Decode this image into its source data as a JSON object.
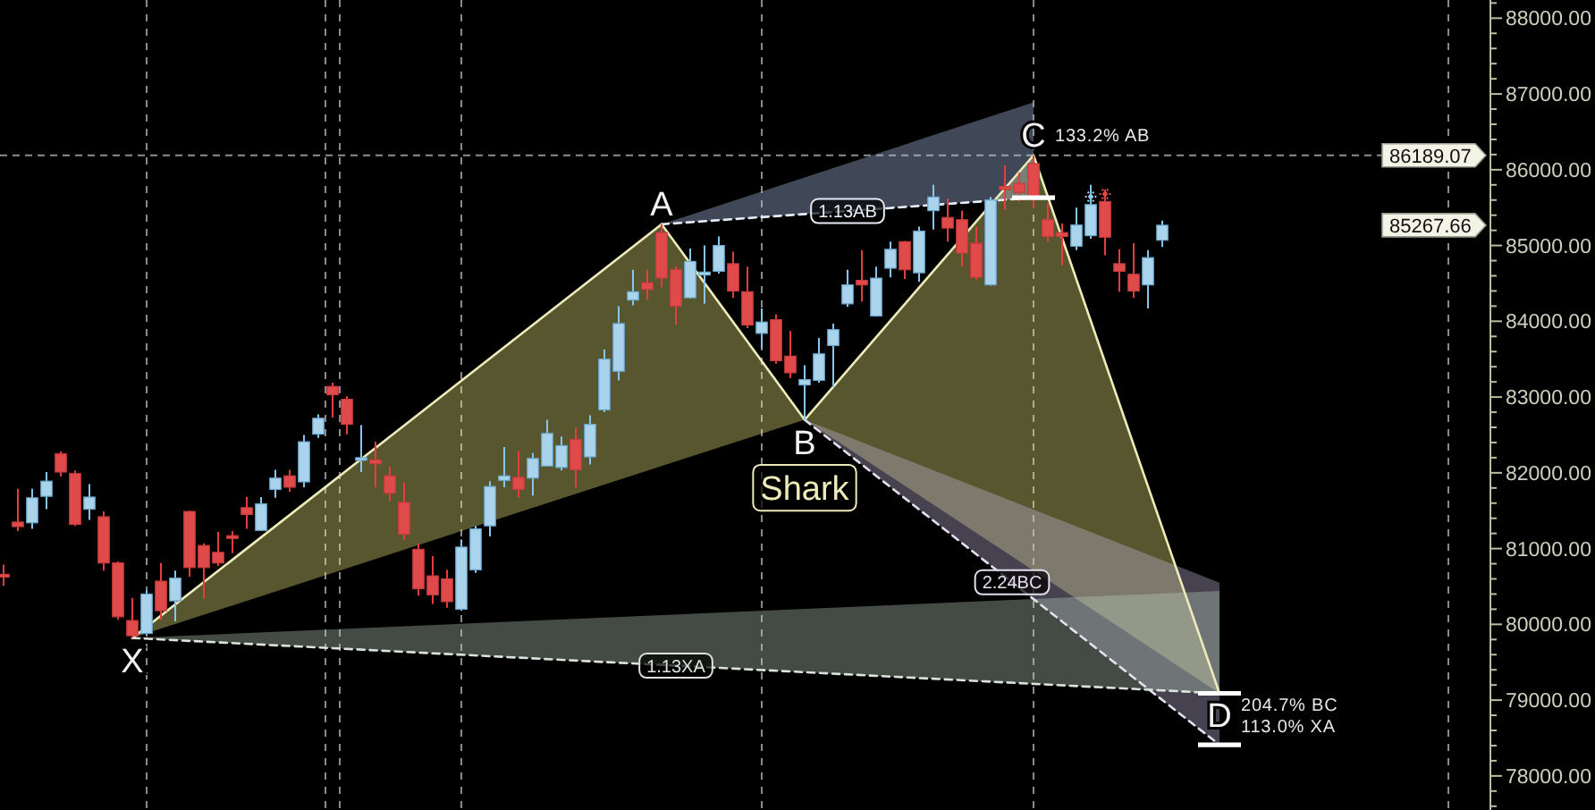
{
  "chart_data": {
    "type": "candlestick",
    "categories": [
      null,
      null,
      null,
      null,
      null,
      null,
      null,
      null,
      null,
      null,
      null,
      null,
      null,
      null,
      null,
      null,
      null,
      null,
      null,
      null,
      null,
      null,
      null,
      null,
      null,
      null,
      null,
      null,
      null,
      null,
      null,
      null,
      null,
      null,
      null,
      null,
      null,
      null,
      null,
      null,
      null,
      null,
      null,
      null,
      null,
      null,
      null,
      null,
      null,
      null,
      null,
      null,
      null,
      null,
      null,
      null,
      null,
      null,
      null,
      null,
      null,
      null,
      null,
      null,
      null,
      null,
      null,
      null,
      null,
      null,
      null,
      null,
      null,
      null,
      null,
      null,
      null,
      null,
      null,
      null,
      null,
      null,
      null,
      null,
      null,
      null,
      null,
      null,
      null,
      null,
      null,
      null,
      null,
      null,
      null,
      null,
      null,
      null,
      null,
      null,
      null,
      null,
      null,
      null
    ],
    "ohlc": [
      [
        80660,
        80790,
        80510,
        80640
      ],
      [
        81350,
        81790,
        81230,
        81290
      ],
      [
        81340,
        81790,
        81260,
        81670
      ],
      [
        81690,
        82010,
        81520,
        81890
      ],
      [
        82250,
        82280,
        81950,
        82010
      ],
      [
        81990,
        82030,
        81300,
        81320
      ],
      [
        81520,
        81850,
        81380,
        81680
      ],
      [
        81420,
        81490,
        80710,
        80810
      ],
      [
        80810,
        80830,
        80060,
        80100
      ],
      [
        80050,
        80350,
        79820,
        79850
      ],
      [
        79880,
        80450,
        79860,
        80400
      ],
      [
        80570,
        80810,
        80060,
        80180
      ],
      [
        80310,
        80710,
        80040,
        80610
      ],
      [
        81490,
        81500,
        80630,
        80750
      ],
      [
        81040,
        81070,
        80340,
        80750
      ],
      [
        80950,
        81220,
        80770,
        80810
      ],
      [
        81170,
        81230,
        80940,
        81140
      ],
      [
        81540,
        81680,
        81260,
        81450
      ],
      [
        81240,
        81680,
        81230,
        81590
      ],
      [
        81780,
        82040,
        81670,
        81930
      ],
      [
        81960,
        82040,
        81750,
        81810
      ],
      [
        81880,
        82500,
        81810,
        82410
      ],
      [
        82510,
        82770,
        82460,
        82720
      ],
      [
        83140,
        83190,
        82730,
        83030
      ],
      [
        82970,
        83010,
        82510,
        82640
      ],
      [
        82170,
        82630,
        82010,
        82200
      ],
      [
        82170,
        82410,
        81810,
        82120
      ],
      [
        81960,
        82080,
        81630,
        81730
      ],
      [
        81610,
        81870,
        81120,
        81190
      ],
      [
        80990,
        81070,
        80380,
        80470
      ],
      [
        80640,
        80900,
        80270,
        80390
      ],
      [
        80600,
        80720,
        80220,
        80300
      ],
      [
        80200,
        81120,
        80180,
        81020
      ],
      [
        80720,
        81300,
        80680,
        81260
      ],
      [
        81300,
        81890,
        81160,
        81820
      ],
      [
        81900,
        82340,
        81810,
        81960
      ],
      [
        81940,
        82290,
        81670,
        81780
      ],
      [
        81930,
        82260,
        81700,
        82190
      ],
      [
        82090,
        82700,
        82080,
        82520
      ],
      [
        82070,
        82480,
        82030,
        82360
      ],
      [
        82440,
        82600,
        81810,
        82040
      ],
      [
        82210,
        82760,
        82110,
        82640
      ],
      [
        82830,
        83630,
        82800,
        83500
      ],
      [
        83340,
        84200,
        83220,
        83970
      ],
      [
        84280,
        84680,
        84210,
        84390
      ],
      [
        84510,
        84680,
        84280,
        84420
      ],
      [
        85170,
        85280,
        84450,
        84570
      ],
      [
        84680,
        84730,
        83950,
        84200
      ],
      [
        84310,
        84960,
        84300,
        84790
      ],
      [
        84610,
        85000,
        84230,
        84650
      ],
      [
        84660,
        85120,
        84630,
        85000
      ],
      [
        84760,
        84920,
        84310,
        84400
      ],
      [
        84390,
        84720,
        83910,
        83950
      ],
      [
        83840,
        84170,
        83640,
        83990
      ],
      [
        84020,
        84090,
        83440,
        83480
      ],
      [
        83540,
        83870,
        83250,
        83320
      ],
      [
        83160,
        83420,
        82700,
        83230
      ],
      [
        83220,
        83780,
        83190,
        83570
      ],
      [
        83680,
        83970,
        83130,
        83890
      ],
      [
        84230,
        84680,
        84190,
        84480
      ],
      [
        84540,
        84940,
        84260,
        84480
      ],
      [
        84070,
        84720,
        84060,
        84570
      ],
      [
        84700,
        85050,
        84580,
        84950
      ],
      [
        85050,
        85060,
        84560,
        84680
      ],
      [
        84640,
        85250,
        84520,
        85190
      ],
      [
        85460,
        85800,
        85210,
        85640
      ],
      [
        85370,
        85620,
        85050,
        85230
      ],
      [
        85340,
        85460,
        84720,
        84900
      ],
      [
        85030,
        85250,
        84540,
        84580
      ],
      [
        84480,
        85640,
        84470,
        85600
      ],
      [
        85780,
        86060,
        85470,
        85740
      ],
      [
        85820,
        85960,
        85580,
        85700
      ],
      [
        86080,
        86190,
        85490,
        85640
      ],
      [
        85340,
        85560,
        85050,
        85120
      ],
      [
        85170,
        85290,
        84740,
        85120
      ],
      [
        84990,
        85500,
        84940,
        85270
      ],
      [
        85130,
        85800,
        85090,
        85540
      ],
      [
        85580,
        85740,
        84870,
        85110
      ],
      [
        84760,
        84950,
        84390,
        84660
      ],
      [
        84620,
        85030,
        84310,
        84400
      ],
      [
        84480,
        84940,
        84170,
        84840
      ],
      [
        85070,
        85330,
        84980,
        85267.66
      ],
      null,
      null,
      null,
      null,
      null,
      null,
      null,
      null,
      null,
      null,
      null,
      null,
      null,
      null,
      null,
      null,
      null,
      null,
      null,
      null,
      null,
      null
    ],
    "value_labels": [
      null,
      null,
      null,
      null,
      null,
      null,
      null,
      null,
      null,
      null,
      null,
      null,
      null,
      null,
      null,
      null,
      null,
      null,
      null,
      null,
      null,
      null,
      null,
      null,
      null,
      null,
      null,
      null,
      null,
      null,
      null,
      null,
      null,
      null,
      null,
      null,
      null,
      null,
      null,
      null,
      null,
      null,
      null,
      null,
      null,
      null,
      null,
      null,
      null,
      null,
      null,
      null,
      null,
      null,
      null,
      null,
      null,
      null,
      null,
      null,
      null,
      null,
      null,
      null,
      null,
      null,
      null,
      null,
      null,
      null,
      null,
      null,
      null,
      null,
      null,
      null,
      null,
      null,
      null,
      null,
      null,
      "85267.66",
      null,
      null,
      null,
      null,
      null,
      null,
      null,
      null,
      null,
      null,
      null,
      null,
      null,
      null,
      null,
      null,
      null,
      null,
      null,
      null,
      null,
      null
    ],
    "ylim": [
      77550,
      88240
    ],
    "yticks": [
      {
        "value": 77600,
        "label": null
      },
      {
        "value": 77800,
        "label": null
      },
      {
        "value": 78000,
        "label": "78000.00"
      },
      {
        "value": 78200,
        "label": null
      },
      {
        "value": 78400,
        "label": null
      },
      {
        "value": 78600,
        "label": null
      },
      {
        "value": 78800,
        "label": null
      },
      {
        "value": 79000,
        "label": "79000.00"
      },
      {
        "value": 79200,
        "label": null
      },
      {
        "value": 79400,
        "label": null
      },
      {
        "value": 79600,
        "label": null
      },
      {
        "value": 79800,
        "label": null
      },
      {
        "value": 80000,
        "label": "80000.00"
      },
      {
        "value": 80200,
        "label": null
      },
      {
        "value": 80400,
        "label": null
      },
      {
        "value": 80600,
        "label": null
      },
      {
        "value": 80800,
        "label": null
      },
      {
        "value": 81000,
        "label": "81000.00"
      },
      {
        "value": 81200,
        "label": null
      },
      {
        "value": 81400,
        "label": null
      },
      {
        "value": 81600,
        "label": null
      },
      {
        "value": 81800,
        "label": null
      },
      {
        "value": 82000,
        "label": "82000.00"
      },
      {
        "value": 82200,
        "label": null
      },
      {
        "value": 82400,
        "label": null
      },
      {
        "value": 82600,
        "label": null
      },
      {
        "value": 82800,
        "label": null
      },
      {
        "value": 83000,
        "label": "83000.00"
      },
      {
        "value": 83200,
        "label": null
      },
      {
        "value": 83400,
        "label": null
      },
      {
        "value": 83600,
        "label": null
      },
      {
        "value": 83800,
        "label": null
      },
      {
        "value": 84000,
        "label": "84000.00"
      },
      {
        "value": 84200,
        "label": null
      },
      {
        "value": 84400,
        "label": null
      },
      {
        "value": 84600,
        "label": null
      },
      {
        "value": 84800,
        "label": null
      },
      {
        "value": 85000,
        "label": "85000.00"
      },
      {
        "value": 85200,
        "label": null
      },
      {
        "value": 85400,
        "label": null
      },
      {
        "value": 85600,
        "label": null
      },
      {
        "value": 85800,
        "label": null
      },
      {
        "value": 86000,
        "label": "86000.00"
      },
      {
        "value": 86200,
        "label": null
      },
      {
        "value": 86400,
        "label": null
      },
      {
        "value": 86600,
        "label": null
      },
      {
        "value": 86800,
        "label": null
      },
      {
        "value": 87000,
        "label": "87000.00"
      },
      {
        "value": 87200,
        "label": null
      },
      {
        "value": 87400,
        "label": null
      },
      {
        "value": 87600,
        "label": null
      },
      {
        "value": 87800,
        "label": null
      },
      {
        "value": 88000,
        "label": "88000.00"
      },
      {
        "value": 88200,
        "label": null
      }
    ],
    "tick_labels": "y",
    "series": [
      {
        "type": "line",
        "name": "Shark",
        "color": "#edebb9",
        "values": [
          null,
          null,
          null,
          null,
          null,
          null,
          null,
          null,
          null,
          79820,
          null,
          null,
          null,
          null,
          null,
          null,
          null,
          null,
          null,
          null,
          null,
          null,
          null,
          null,
          null,
          null,
          null,
          null,
          null,
          null,
          null,
          null,
          null,
          null,
          null,
          null,
          null,
          null,
          null,
          null,
          null,
          null,
          null,
          null,
          null,
          null,
          85280,
          null,
          null,
          null,
          null,
          null,
          null,
          null,
          null,
          null,
          82700,
          null,
          null,
          null,
          null,
          null,
          null,
          null,
          null,
          null,
          null,
          null,
          null,
          null,
          null,
          null,
          86190,
          null,
          null,
          null,
          null,
          null,
          null,
          null,
          null,
          null,
          null,
          null,
          null,
          79090,
          null,
          null,
          null,
          null,
          null,
          null,
          null,
          null,
          null,
          null,
          null,
          null,
          null,
          null,
          null,
          null,
          null,
          null
        ],
        "lower": [
          null,
          null,
          null,
          null,
          null,
          null,
          null,
          null,
          null,
          79820,
          null,
          null,
          null,
          null,
          null,
          null,
          null,
          null,
          null,
          null,
          null,
          null,
          null,
          null,
          null,
          null,
          null,
          null,
          null,
          null,
          null,
          null,
          null,
          null,
          null,
          null,
          null,
          null,
          null,
          null,
          null,
          null,
          null,
          null,
          null,
          null,
          82090,
          null,
          null,
          null,
          null,
          null,
          null,
          null,
          null,
          null,
          82700,
          null,
          null,
          null,
          null,
          null,
          null,
          null,
          null,
          null,
          null,
          null,
          null,
          null,
          null,
          null,
          80710,
          null,
          null,
          null,
          null,
          null,
          null,
          null,
          null,
          null,
          null,
          null,
          null,
          79090,
          null,
          null,
          null,
          null,
          null,
          null,
          null,
          null,
          null,
          null,
          null,
          null,
          null,
          null,
          null,
          null,
          null,
          null
        ],
        "upper": [
          null,
          null,
          null,
          null,
          null,
          null,
          null,
          null,
          null,
          79820,
          null,
          null,
          null,
          null,
          null,
          null,
          null,
          null,
          null,
          null,
          null,
          null,
          null,
          null,
          null,
          null,
          null,
          null,
          null,
          null,
          null,
          null,
          null,
          null,
          null,
          null,
          null,
          null,
          null,
          null,
          null,
          null,
          null,
          null,
          null,
          null,
          85280,
          null,
          null,
          null,
          null,
          null,
          null,
          null,
          null,
          null,
          82700,
          null,
          null,
          null,
          null,
          null,
          null,
          null,
          null,
          null,
          null,
          null,
          null,
          null,
          null,
          null,
          86190,
          null,
          null,
          null,
          null,
          null,
          null,
          null,
          null,
          null,
          null,
          null,
          null,
          79090,
          null,
          null,
          null,
          null,
          null,
          null,
          null,
          null,
          null,
          null,
          null,
          null,
          null,
          null,
          null,
          null,
          null,
          null
        ],
        "value_labels": [
          null,
          null,
          null,
          null,
          null,
          null,
          null,
          null,
          null,
          "X",
          null,
          null,
          null,
          null,
          null,
          null,
          null,
          null,
          null,
          null,
          null,
          null,
          null,
          null,
          null,
          null,
          null,
          null,
          null,
          null,
          null,
          null,
          null,
          null,
          null,
          null,
          null,
          null,
          null,
          null,
          null,
          null,
          null,
          null,
          null,
          null,
          "A",
          null,
          null,
          null,
          null,
          null,
          null,
          null,
          null,
          null,
          "B",
          null,
          null,
          null,
          null,
          null,
          null,
          null,
          null,
          null,
          null,
          null,
          null,
          null,
          null,
          null,
          "C",
          null,
          null,
          null,
          null,
          null,
          null,
          null,
          null,
          null,
          null,
          null,
          null,
          "D",
          null,
          null,
          null,
          null,
          null,
          null,
          null,
          null,
          null,
          null,
          null,
          null,
          null,
          null,
          null,
          null,
          null,
          null
        ]
      },
      {
        "type": "line",
        "name": "1.13AB",
        "color": "#e6ecf7",
        "line_style": "dashed",
        "values": [
          null,
          null,
          null,
          null,
          null,
          null,
          null,
          null,
          null,
          null,
          null,
          null,
          null,
          null,
          null,
          null,
          null,
          null,
          null,
          null,
          null,
          null,
          null,
          null,
          null,
          null,
          null,
          null,
          null,
          null,
          null,
          null,
          null,
          null,
          null,
          null,
          null,
          null,
          null,
          null,
          null,
          null,
          null,
          null,
          null,
          null,
          85280,
          null,
          null,
          null,
          null,
          null,
          null,
          null,
          null,
          null,
          null,
          null,
          null,
          null,
          null,
          null,
          null,
          null,
          null,
          null,
          null,
          null,
          null,
          null,
          null,
          null,
          85630,
          null,
          null,
          null,
          null,
          null,
          null,
          null,
          null,
          null,
          null,
          null,
          null,
          null,
          null,
          null,
          null,
          null,
          null,
          null,
          null,
          null,
          null,
          null,
          null,
          null,
          null,
          null,
          null,
          null,
          null,
          null
        ],
        "lower": [
          null,
          null,
          null,
          null,
          null,
          null,
          null,
          null,
          null,
          null,
          null,
          null,
          null,
          null,
          null,
          null,
          null,
          null,
          null,
          null,
          null,
          null,
          null,
          null,
          null,
          null,
          null,
          null,
          null,
          null,
          null,
          null,
          null,
          null,
          null,
          null,
          null,
          null,
          null,
          null,
          null,
          null,
          null,
          null,
          null,
          null,
          85280,
          null,
          null,
          null,
          null,
          null,
          null,
          null,
          null,
          null,
          null,
          null,
          null,
          null,
          null,
          null,
          null,
          null,
          null,
          null,
          null,
          null,
          null,
          null,
          null,
          null,
          85630,
          null,
          null,
          null,
          null,
          null,
          null,
          null,
          null,
          null,
          null,
          null,
          null,
          null,
          null,
          null,
          null,
          null,
          null,
          null,
          null,
          null,
          null,
          null,
          null,
          null,
          null,
          null,
          null,
          null,
          null,
          null
        ],
        "upper": [
          null,
          null,
          null,
          null,
          null,
          null,
          null,
          null,
          null,
          null,
          null,
          null,
          null,
          null,
          null,
          null,
          null,
          null,
          null,
          null,
          null,
          null,
          null,
          null,
          null,
          null,
          null,
          null,
          null,
          null,
          null,
          null,
          null,
          null,
          null,
          null,
          null,
          null,
          null,
          null,
          null,
          null,
          null,
          null,
          null,
          null,
          85280,
          null,
          null,
          null,
          null,
          null,
          null,
          null,
          null,
          null,
          null,
          null,
          null,
          null,
          null,
          null,
          null,
          null,
          null,
          null,
          null,
          null,
          null,
          null,
          null,
          null,
          86890,
          null,
          null,
          null,
          null,
          null,
          null,
          null,
          null,
          null,
          null,
          null,
          null,
          null,
          null,
          null,
          null,
          null,
          null,
          null,
          null,
          null,
          null,
          null,
          null,
          null,
          null,
          null,
          null,
          null,
          null,
          null
        ]
      },
      {
        "type": "line",
        "name": "2.24BC",
        "color": "#e3dfed",
        "line_style": "dashed",
        "values": [
          null,
          null,
          null,
          null,
          null,
          null,
          null,
          null,
          null,
          null,
          null,
          null,
          null,
          null,
          null,
          null,
          null,
          null,
          null,
          null,
          null,
          null,
          null,
          null,
          null,
          null,
          null,
          null,
          null,
          null,
          null,
          null,
          null,
          null,
          null,
          null,
          null,
          null,
          null,
          null,
          null,
          null,
          null,
          null,
          null,
          null,
          null,
          null,
          null,
          null,
          null,
          null,
          null,
          null,
          null,
          null,
          82700,
          null,
          null,
          null,
          null,
          null,
          null,
          null,
          null,
          null,
          null,
          null,
          null,
          null,
          null,
          null,
          null,
          null,
          null,
          null,
          null,
          null,
          null,
          null,
          null,
          null,
          null,
          null,
          null,
          78410,
          null,
          null,
          null,
          null,
          null,
          null,
          null,
          null,
          null,
          null,
          null,
          null,
          null,
          null,
          null,
          null,
          null,
          null
        ],
        "lower": [
          null,
          null,
          null,
          null,
          null,
          null,
          null,
          null,
          null,
          null,
          null,
          null,
          null,
          null,
          null,
          null,
          null,
          null,
          null,
          null,
          null,
          null,
          null,
          null,
          null,
          null,
          null,
          null,
          null,
          null,
          null,
          null,
          null,
          null,
          null,
          null,
          null,
          null,
          null,
          null,
          null,
          null,
          null,
          null,
          null,
          null,
          null,
          null,
          null,
          null,
          null,
          null,
          null,
          null,
          null,
          null,
          82700,
          null,
          null,
          null,
          null,
          null,
          null,
          null,
          null,
          null,
          null,
          null,
          null,
          null,
          null,
          null,
          null,
          null,
          null,
          null,
          null,
          null,
          null,
          null,
          null,
          null,
          null,
          null,
          null,
          78410,
          null,
          null,
          null,
          null,
          null,
          null,
          null,
          null,
          null,
          null,
          null,
          null,
          null,
          null,
          null,
          null,
          null,
          null
        ],
        "upper": [
          null,
          null,
          null,
          null,
          null,
          null,
          null,
          null,
          null,
          null,
          null,
          null,
          null,
          null,
          null,
          null,
          null,
          null,
          null,
          null,
          null,
          null,
          null,
          null,
          null,
          null,
          null,
          null,
          null,
          null,
          null,
          null,
          null,
          null,
          null,
          null,
          null,
          null,
          null,
          null,
          null,
          null,
          null,
          null,
          null,
          null,
          null,
          null,
          null,
          null,
          null,
          null,
          null,
          null,
          null,
          null,
          82700,
          null,
          null,
          null,
          null,
          null,
          null,
          null,
          null,
          null,
          null,
          null,
          null,
          null,
          null,
          null,
          null,
          null,
          null,
          null,
          null,
          null,
          null,
          null,
          null,
          null,
          null,
          null,
          null,
          80550,
          null,
          null,
          null,
          null,
          null,
          null,
          null,
          null,
          null,
          null,
          null,
          null,
          null,
          null,
          null,
          null,
          null,
          null
        ]
      },
      {
        "type": "line",
        "name": "1.13XA",
        "color": "#dbe3dc",
        "line_style": "dashed",
        "values": [
          null,
          null,
          null,
          null,
          null,
          null,
          null,
          null,
          null,
          79820,
          null,
          null,
          null,
          null,
          null,
          null,
          null,
          null,
          null,
          null,
          null,
          null,
          null,
          null,
          null,
          null,
          null,
          null,
          null,
          null,
          null,
          null,
          null,
          null,
          null,
          null,
          null,
          null,
          null,
          null,
          null,
          null,
          null,
          null,
          null,
          null,
          null,
          null,
          null,
          null,
          null,
          null,
          null,
          null,
          null,
          null,
          null,
          null,
          null,
          null,
          null,
          null,
          null,
          null,
          null,
          null,
          null,
          null,
          null,
          null,
          null,
          null,
          null,
          null,
          null,
          null,
          null,
          null,
          null,
          null,
          null,
          null,
          null,
          null,
          null,
          79090,
          null,
          null,
          null,
          null,
          null,
          null,
          null,
          null,
          null,
          null,
          null,
          null,
          null,
          null,
          null,
          null,
          null,
          null
        ],
        "lower": [
          null,
          null,
          null,
          null,
          null,
          null,
          null,
          null,
          null,
          79820,
          null,
          null,
          null,
          null,
          null,
          null,
          null,
          null,
          null,
          null,
          null,
          null,
          null,
          null,
          null,
          null,
          null,
          null,
          null,
          null,
          null,
          null,
          null,
          null,
          null,
          null,
          null,
          null,
          null,
          null,
          null,
          null,
          null,
          null,
          null,
          null,
          null,
          null,
          null,
          null,
          null,
          null,
          null,
          null,
          null,
          null,
          null,
          null,
          null,
          null,
          null,
          null,
          null,
          null,
          null,
          null,
          null,
          null,
          null,
          null,
          null,
          null,
          null,
          null,
          null,
          null,
          null,
          null,
          null,
          null,
          null,
          null,
          null,
          null,
          null,
          79090,
          null,
          null,
          null,
          null,
          null,
          null,
          null,
          null,
          null,
          null,
          null,
          null,
          null,
          null,
          null,
          null,
          null,
          null
        ],
        "upper": [
          null,
          null,
          null,
          null,
          null,
          null,
          null,
          null,
          null,
          79820,
          null,
          null,
          null,
          null,
          null,
          null,
          null,
          null,
          null,
          null,
          null,
          null,
          null,
          null,
          null,
          null,
          null,
          null,
          null,
          null,
          null,
          null,
          null,
          null,
          null,
          null,
          null,
          null,
          null,
          null,
          null,
          null,
          null,
          null,
          null,
          null,
          null,
          null,
          null,
          null,
          null,
          null,
          null,
          null,
          null,
          null,
          null,
          null,
          null,
          null,
          null,
          null,
          null,
          null,
          null,
          null,
          null,
          null,
          null,
          null,
          null,
          null,
          null,
          null,
          null,
          null,
          null,
          null,
          null,
          null,
          null,
          null,
          null,
          null,
          null,
          80440,
          null,
          null,
          null,
          null,
          null,
          null,
          null,
          null,
          null,
          null,
          null,
          null,
          null,
          null,
          null,
          null,
          null,
          null
        ]
      }
    ],
    "ref_lines": [
      {
        "axis": "y",
        "value": 86189.07,
        "label": "86189.07",
        "line_style": "dashed",
        "color": "#8e8e8e"
      }
    ],
    "annotations": [
      {
        "text": "133.2% AB",
        "y": 86190
      },
      "204.7% BC",
      "113.0% XA"
    ]
  }
}
